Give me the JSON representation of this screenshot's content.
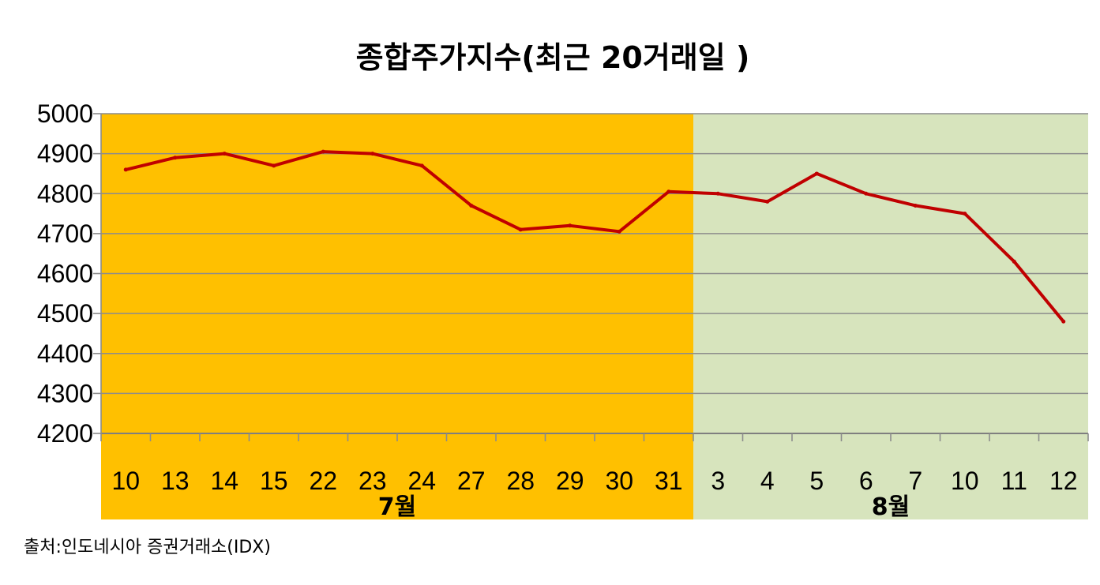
{
  "chart_data": {
    "type": "line",
    "title": "종합주가지수(최근 20거래일 )",
    "categories": [
      "10",
      "13",
      "14",
      "15",
      "22",
      "23",
      "24",
      "27",
      "28",
      "29",
      "30",
      "31",
      "3",
      "4",
      "5",
      "6",
      "7",
      "10",
      "11",
      "12"
    ],
    "series": [
      {
        "values": [
          4860,
          4890,
          4900,
          4870,
          4905,
          4900,
          4870,
          4770,
          4710,
          4720,
          4705,
          4805,
          4800,
          4780,
          4850,
          4800,
          4770,
          4750,
          4630,
          4480
        ]
      }
    ],
    "yticks": [
      "5000",
      "4900",
      "4800",
      "4700",
      "4600",
      "4500",
      "4400",
      "4300",
      "4200"
    ],
    "ylim": [
      4200,
      5000
    ],
    "grid": true,
    "months": [
      {
        "label": "7월",
        "count": 12,
        "color": "#FFC000"
      },
      {
        "label": "8월",
        "count": 8,
        "color": "#D7E4BD"
      }
    ],
    "line_color": "#C00000",
    "source": "출처:인도네시아 증권거래소(IDX)"
  }
}
